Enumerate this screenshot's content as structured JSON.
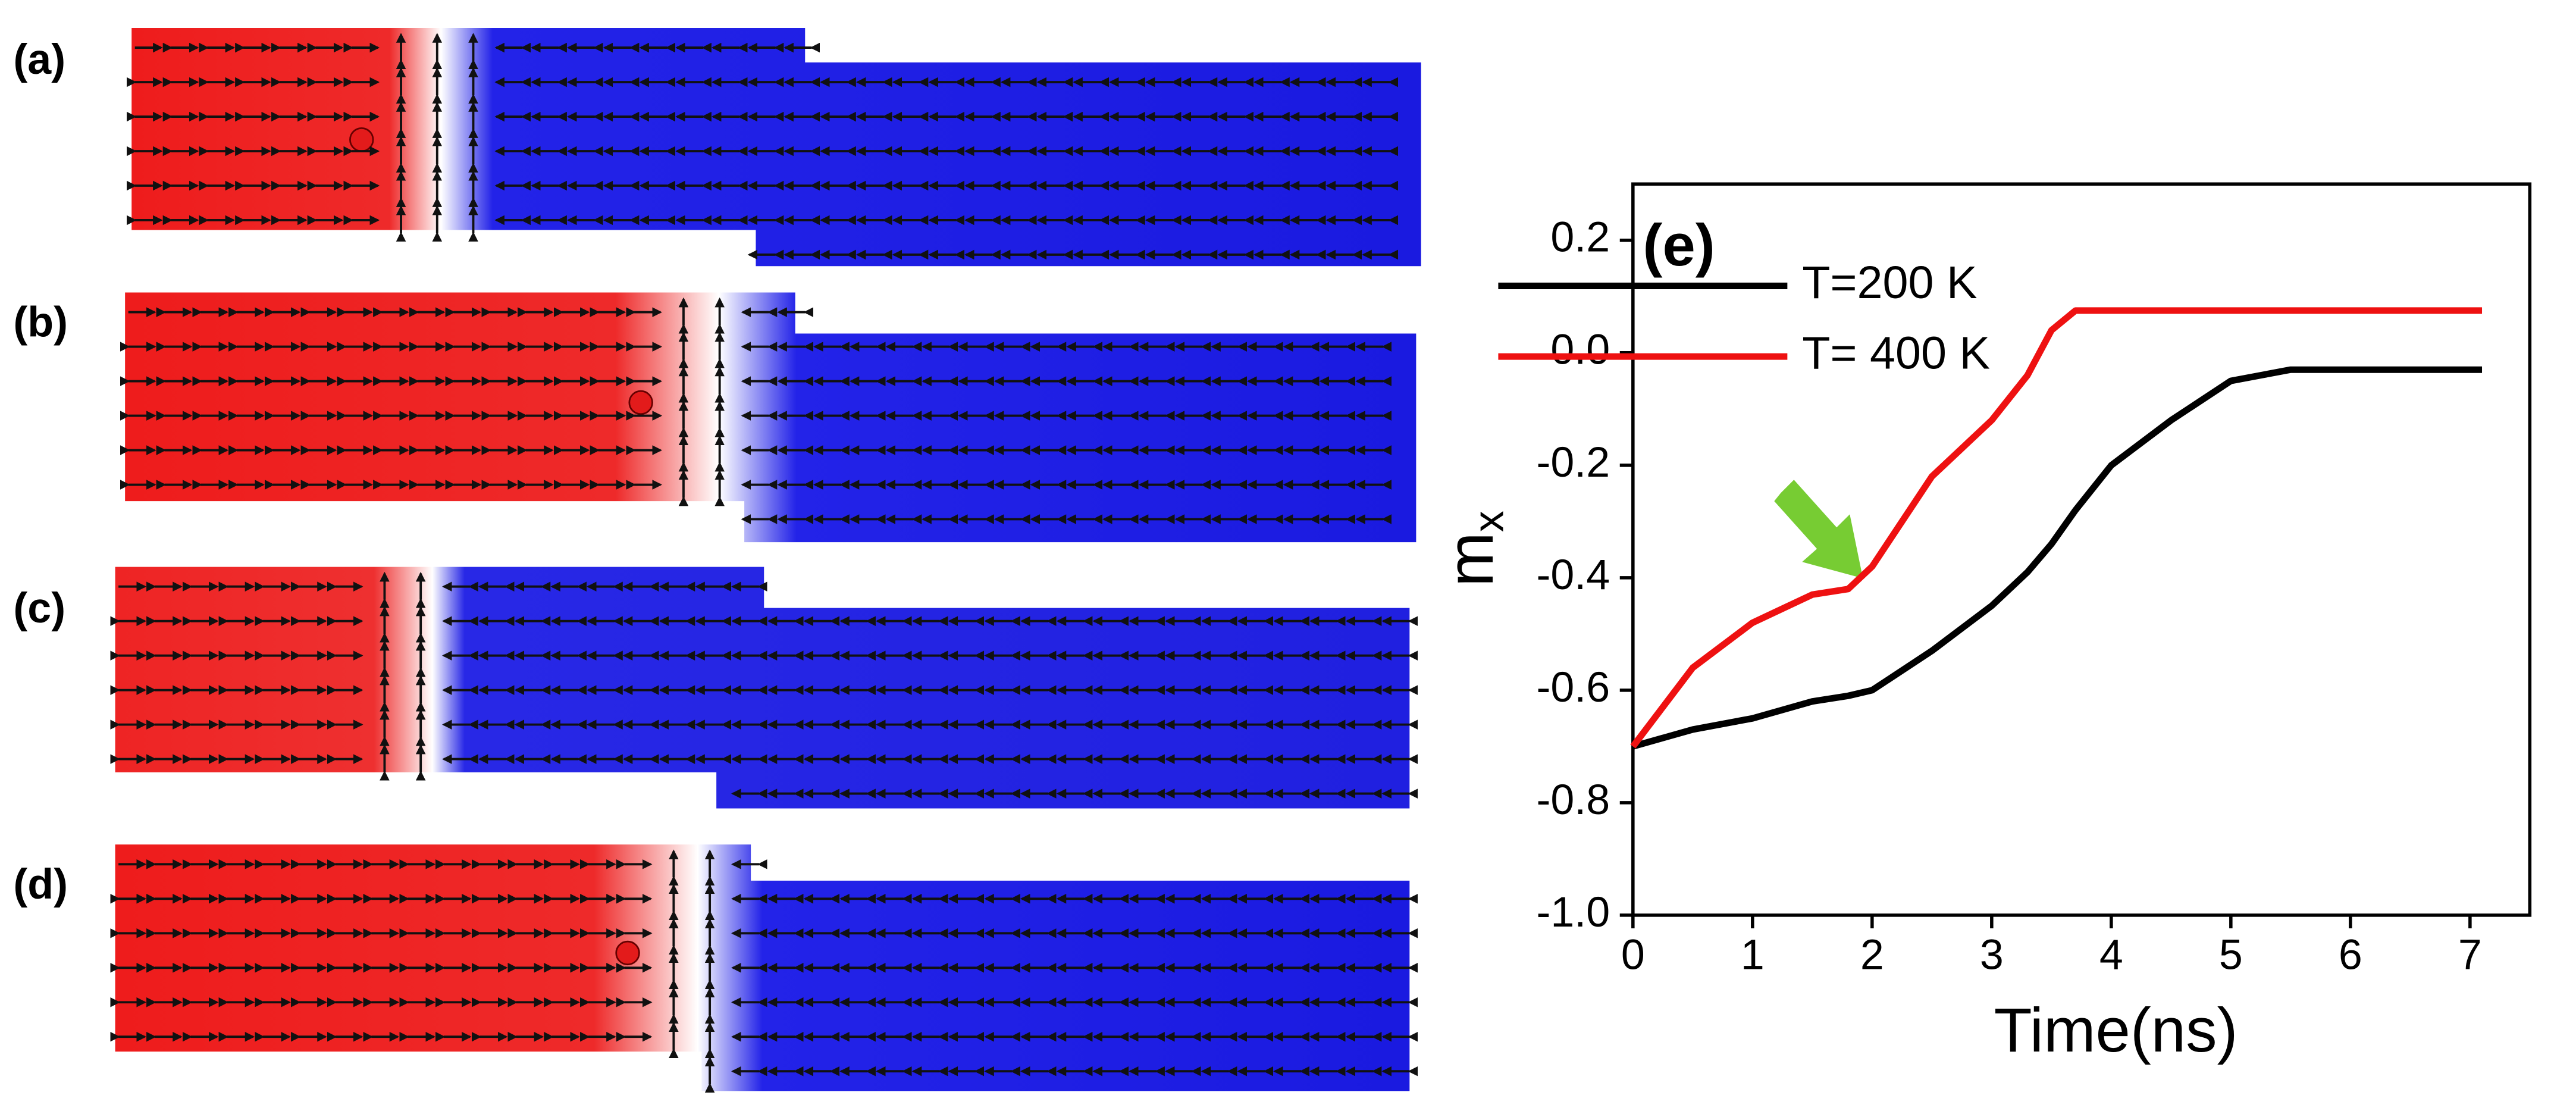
{
  "panel_labels": [
    "(a)",
    "(b)",
    "(c)",
    "(d)"
  ],
  "chart_data": {
    "type": "line",
    "label": "(e)",
    "xlabel": "Time(ns)",
    "ylabel": "m",
    "ylabel_sub": "x",
    "x": [
      0,
      0.5,
      1,
      1.5,
      1.8,
      2,
      2.5,
      3,
      3.3,
      3.5,
      3.7,
      4,
      4.5,
      5,
      5.5,
      6,
      6.5,
      7.1
    ],
    "series": [
      {
        "name": "T=200 K",
        "color": "#000000",
        "values": [
          -0.7,
          -0.67,
          -0.65,
          -0.62,
          -0.61,
          -0.6,
          -0.53,
          -0.45,
          -0.39,
          -0.34,
          -0.28,
          -0.2,
          -0.12,
          -0.05,
          -0.03,
          -0.03,
          -0.03,
          -0.03
        ]
      },
      {
        "name": "T= 400 K",
        "color": "#ee1111",
        "values": [
          -0.7,
          -0.56,
          -0.48,
          -0.43,
          -0.42,
          -0.38,
          -0.22,
          -0.12,
          -0.04,
          0.04,
          0.075,
          0.075,
          0.075,
          0.075,
          0.075,
          0.075,
          0.075,
          0.075
        ]
      }
    ],
    "xlim": [
      0,
      7.5
    ],
    "xticks": [
      0,
      1,
      2,
      3,
      4,
      5,
      6,
      7
    ],
    "ylim": [
      -1.0,
      0.3
    ],
    "yticks": [
      {
        "value": -1,
        "label": "-1.0"
      },
      -0.8,
      -0.6,
      -0.4,
      -0.2,
      {
        "value": 0,
        "label": "0.0"
      },
      0.2
    ]
  }
}
